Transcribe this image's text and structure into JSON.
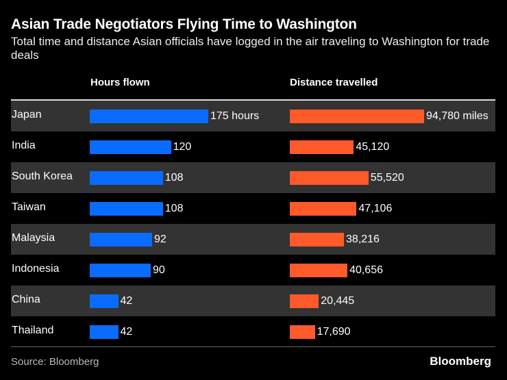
{
  "colors": {
    "hours": "#0a6cff",
    "distance": "#ff5a2a",
    "background": "#000000",
    "row_shade": "#333333"
  },
  "chart_data": {
    "type": "bar",
    "title": "Asian Trade Negotiators Flying Time to Washington",
    "subtitle": "Total time and distance Asian officials have logged in the air traveling to Washington for trade deals",
    "categories": [
      "Japan",
      "India",
      "South Korea",
      "Taiwan",
      "Malaysia",
      "Indonesia",
      "China",
      "Thailand"
    ],
    "series": [
      {
        "name": "Hours flown",
        "values": [
          175,
          120,
          108,
          108,
          92,
          90,
          42,
          42
        ],
        "labels": [
          "175 hours",
          "120",
          "108",
          "108",
          "92",
          "90",
          "42",
          "42"
        ]
      },
      {
        "name": "Distance travelled",
        "values": [
          94780,
          45120,
          55520,
          47106,
          38216,
          40656,
          20445,
          17690
        ],
        "labels": [
          "94,780 miles",
          "45,120",
          "55,520",
          "47,106",
          "38,216",
          "40,656",
          "20,445",
          "17,690"
        ]
      }
    ],
    "source": "Source: Bloomberg",
    "logo": "Bloomberg"
  }
}
